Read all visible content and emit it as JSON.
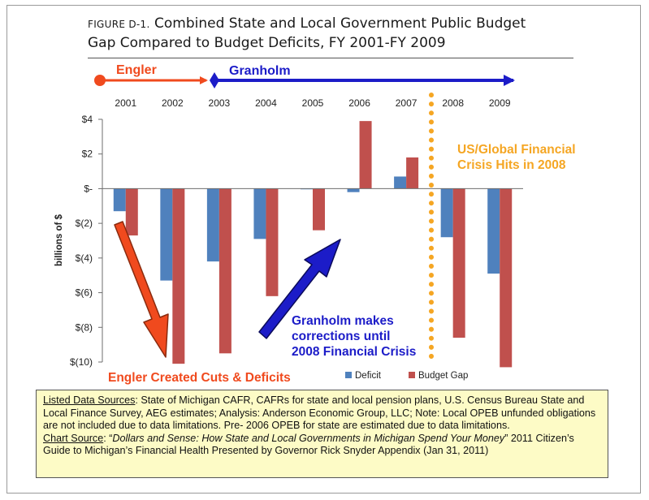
{
  "figure": {
    "prefix": "FIGURE D-1.",
    "title_line1": "Combined State and Local Government Public Budget",
    "title_line2": "Gap Compared to Budget Deficits, FY 2001-FY 2009"
  },
  "timeline": {
    "engler_label": "Engler",
    "granholm_label": "Granholm",
    "engler_color": "#f04a1e",
    "granholm_color": "#1c1cc8"
  },
  "chart_data": {
    "type": "bar",
    "categories": [
      "2001",
      "2002",
      "2003",
      "2004",
      "2005",
      "2006",
      "2007",
      "2008",
      "2009"
    ],
    "series": [
      {
        "name": "Deficit",
        "color": "#4f81bd",
        "values": [
          -1.3,
          -5.3,
          -4.2,
          -2.9,
          0.0,
          -0.2,
          0.7,
          -2.8,
          -4.9
        ]
      },
      {
        "name": "Budget Gap",
        "color": "#c0504d",
        "values": [
          -2.7,
          -10.1,
          -9.5,
          -6.2,
          -2.4,
          3.9,
          1.8,
          -8.6,
          -10.3
        ]
      }
    ],
    "y_ticks": [
      {
        "value": 4,
        "label": "$4"
      },
      {
        "value": 2,
        "label": "$2"
      },
      {
        "value": 0,
        "label": "$-"
      },
      {
        "value": -2,
        "label": "$(2)"
      },
      {
        "value": -4,
        "label": "$(4)"
      },
      {
        "value": -6,
        "label": "$(6)"
      },
      {
        "value": -8,
        "label": "$(8)"
      },
      {
        "value": -10,
        "label": "$(10)"
      }
    ],
    "ylim": [
      -10,
      4
    ],
    "ylabel": "billions of $",
    "grid": false,
    "legend": "bottom"
  },
  "annotations": {
    "crisis_line1": "US/Global Financial",
    "crisis_line2": "Crisis Hits in 2008",
    "crisis_color": "#f5a623",
    "granholm_corr_line1": "Granholm makes",
    "granholm_corr_line2": "corrections until",
    "granholm_corr_line3": "2008 Financial Crisis",
    "engler_cuts": "Engler Created Cuts & Deficits"
  },
  "source": {
    "listed_label": "Listed Data Sources",
    "listed_text": ": State of Michigan CAFR, CAFRs for state and local pension plans, U.S. Census Bureau State and Local Finance Survey, AEG estimates; Analysis: Anderson Economic Group, LLC; Note: Local OPEB unfunded obligations are not included due to data limitations. Pre- 2006 OPEB for state are estimated due to data limitations.",
    "chart_label": "Chart Source",
    "chart_text_pre": ": “",
    "chart_italic": "Dollars and Sense: How State and Local Governments in Michigan Spend Your Money",
    "chart_text_post": "” 2011 Citizen’s Guide to Michigan’s Financial Health Presented by Governor Rick Snyder Appendix (Jan 31, 2011)"
  }
}
